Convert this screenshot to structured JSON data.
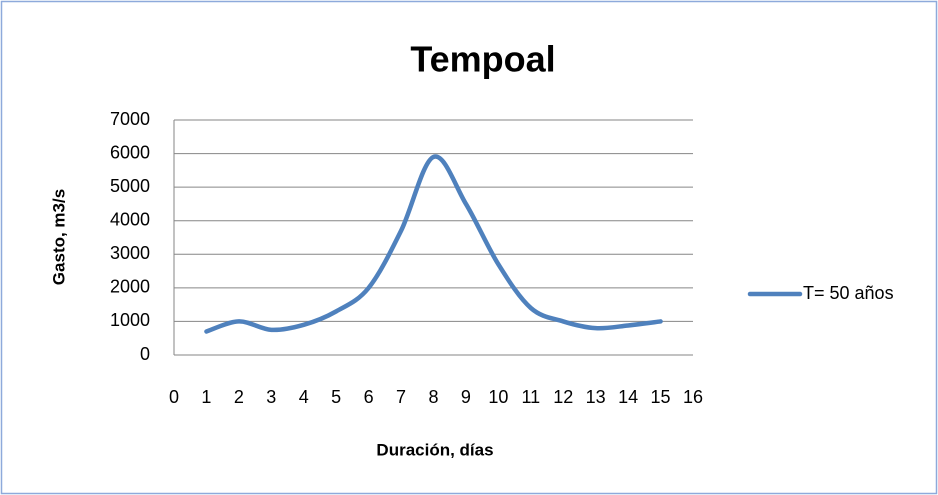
{
  "chart_data": {
    "type": "line",
    "title": "Tempoal",
    "x_label": "Duración, días",
    "y_label": "Gasto, m3/s",
    "x": [
      1,
      2,
      3,
      4,
      5,
      6,
      7,
      8,
      9,
      10,
      11,
      12,
      13,
      14,
      15
    ],
    "series": [
      {
        "name": "T= 50 años",
        "color": "#4f81bd",
        "values": [
          700,
          1000,
          750,
          900,
          1300,
          2000,
          3700,
          5900,
          4500,
          2700,
          1400,
          1000,
          800,
          880,
          1000
        ]
      }
    ],
    "xlim": [
      0,
      16
    ],
    "xticks": [
      0,
      1,
      2,
      3,
      4,
      5,
      6,
      7,
      8,
      9,
      10,
      11,
      12,
      13,
      14,
      15,
      16
    ],
    "ylim": [
      0,
      7000
    ],
    "yticks": [
      0,
      1000,
      2000,
      3000,
      4000,
      5000,
      6000,
      7000
    ],
    "grid": true,
    "smooth": true,
    "legend": "right"
  }
}
